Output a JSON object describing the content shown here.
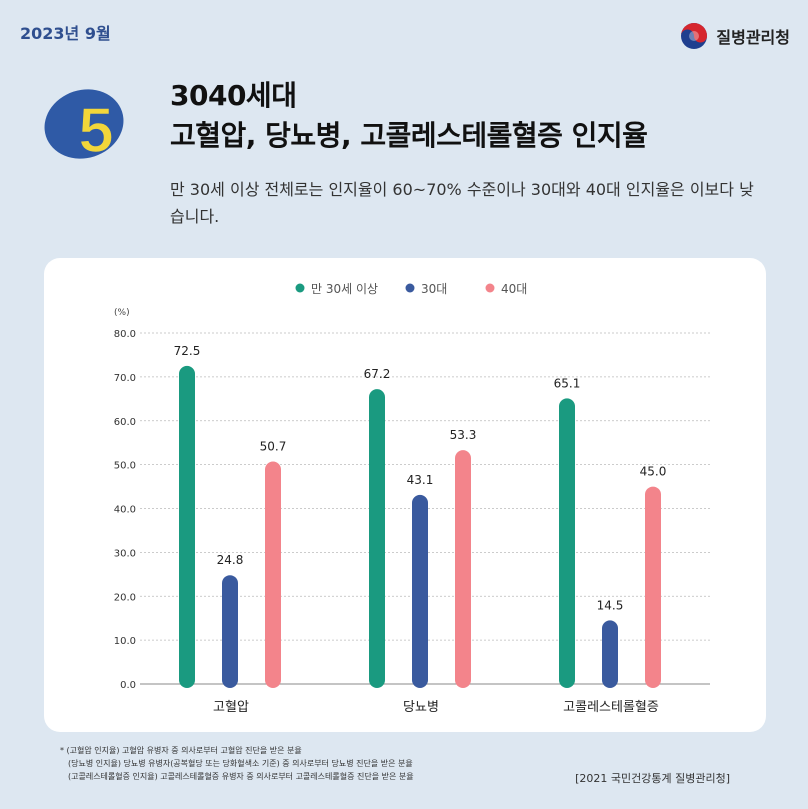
{
  "header": {
    "date": "2023년 9월",
    "org_name": "질병관리청",
    "number": "5",
    "title_line1": "3040세대",
    "title_line2": "고혈압, 당뇨병, 고콜레스테롤혈증 인지율",
    "subtitle": "만 30세 이상 전체로는 인지율이 60~70% 수준이나 30대와 40대 인지율은 이보다 낮습니다."
  },
  "colors": {
    "teal": "#1a9a80",
    "navy": "#3a5a9e",
    "pink": "#f3848b",
    "badge_blue": "#2f5aa6",
    "badge_yellow": "#f2d63a"
  },
  "chart_data": {
    "type": "bar",
    "unit_label": "(%)",
    "categories": [
      "고혈압",
      "당뇨병",
      "고콜레스테롤혈증"
    ],
    "series": [
      {
        "name": "만 30세 이상",
        "color": "#1a9a80",
        "values": [
          72.5,
          67.2,
          65.1
        ]
      },
      {
        "name": "30대",
        "color": "#3a5a9e",
        "values": [
          24.8,
          43.1,
          14.5
        ]
      },
      {
        "name": "40대",
        "color": "#f3848b",
        "values": [
          50.7,
          53.3,
          45.0
        ]
      }
    ],
    "ylim": [
      0,
      80
    ],
    "yticks": [
      "0.0",
      "10.0",
      "20.0",
      "30.0",
      "40.0",
      "50.0",
      "60.0",
      "70.0",
      "80.0"
    ],
    "grid": true,
    "legend_position": "top-center"
  },
  "footer": {
    "notes": [
      "* (고혈압 인지율) 고혈압 유병자 중 의사로부터 고혈압 진단을 받은 분율",
      "(당뇨병 인지율) 당뇨병 유병자(공복혈당 또는 당화혈색소 기준) 중 의사로부터 당뇨병 진단을 받은 분율",
      "(고콜레스테롤혈증 인지율) 고콜레스테롤혈증 유병자 중 의사로부터 고콜레스테롤혈증 진단을 받은 분율"
    ],
    "source": "[2021 국민건강통계 질병관리청]"
  }
}
